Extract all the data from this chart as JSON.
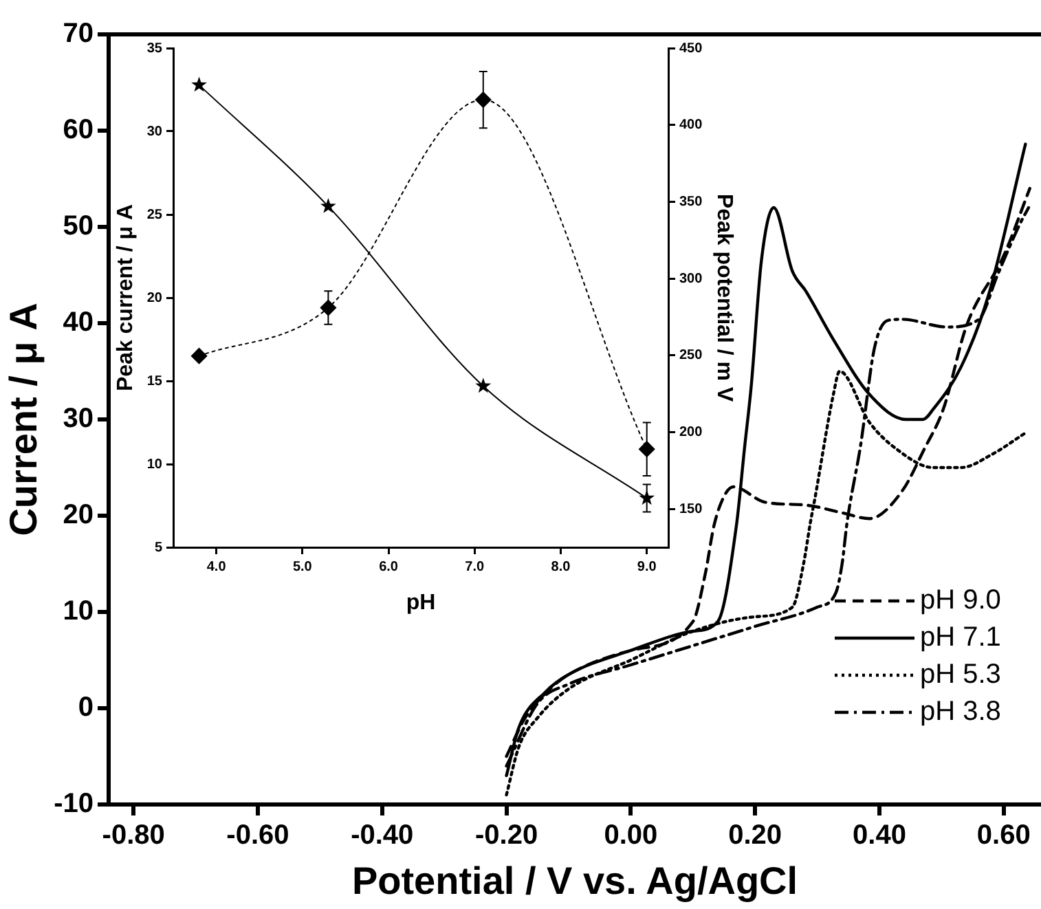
{
  "chart_data": [
    {
      "type": "line",
      "xlabel": "Potential / V vs. Ag/AgCl",
      "ylabel": "Current / μ A",
      "xlim": [
        -0.84,
        0.66
      ],
      "xticks": [
        {
          "value": -0.8,
          "label": "-0.80"
        },
        {
          "value": -0.6,
          "label": "-0.60"
        },
        {
          "value": -0.4,
          "label": "-0.40"
        },
        {
          "value": -0.2,
          "label": "-0.20"
        },
        {
          "value": 0,
          "label": "0.00"
        },
        {
          "value": 0.2,
          "label": "0.20"
        },
        {
          "value": 0.4,
          "label": "0.40"
        },
        {
          "value": 0.6,
          "label": "0.60"
        }
      ],
      "ylim": [
        -10,
        70
      ],
      "yticks": [
        -10,
        0,
        10,
        20,
        30,
        40,
        50,
        60,
        70
      ],
      "grid": false,
      "legend": "bottom right",
      "marker": "none",
      "series": [
        {
          "name": "pH 9.0",
          "color": "#000000",
          "line_style": "dashed",
          "x": [
            -0.2,
            -0.17,
            -0.13,
            -0.1,
            0,
            0.1,
            0.12,
            0.134,
            0.15,
            0.165,
            0.216,
            0.282,
            0.34,
            0.384,
            0.437,
            0.472,
            0.503,
            0.54,
            0.6,
            0.642
          ],
          "values": [
            -5,
            -1,
            2,
            3.5,
            6,
            9,
            14,
            19,
            22,
            23,
            21.4,
            21.1,
            20.3,
            19.7,
            22.6,
            26.9,
            31.1,
            39.7,
            47,
            54
          ]
        },
        {
          "name": "pH 7.1",
          "color": "#000000",
          "line_style": "solid",
          "x": [
            -0.2,
            -0.18,
            -0.137,
            -0.1,
            0,
            0.1,
            0.14,
            0.17,
            0.183,
            0.194,
            0.21,
            0.23,
            0.26,
            0.282,
            0.326,
            0.384,
            0.443,
            0.47,
            0.487,
            0.531,
            0.576,
            0.635
          ],
          "values": [
            -7,
            -2,
            1.7,
            3.5,
            6,
            8,
            9,
            19,
            27,
            33.6,
            46.4,
            52,
            45.4,
            43.3,
            38.3,
            32.6,
            30,
            30,
            31.1,
            35.4,
            43,
            58.6
          ]
        },
        {
          "name": "pH 5.3",
          "color": "#000000",
          "line_style": "dotted",
          "x": [
            -0.2,
            -0.18,
            -0.15,
            -0.1,
            0,
            0.1,
            0.2,
            0.26,
            0.278,
            0.289,
            0.296,
            0.326,
            0.336,
            0.384,
            0.428,
            0.487,
            0.531,
            0.582,
            0.635
          ],
          "values": [
            -9,
            -4,
            -1,
            2,
            5,
            8,
            9.5,
            10.5,
            15,
            19.3,
            21.7,
            32.6,
            35,
            29.7,
            26.9,
            25,
            25,
            26.4,
            28.6
          ]
        },
        {
          "name": "pH 3.8",
          "color": "#000000",
          "line_style": "dashdot",
          "x": [
            -0.2,
            -0.15,
            -0.1,
            0,
            0.1,
            0.2,
            0.3,
            0.33,
            0.34,
            0.348,
            0.37,
            0.392,
            0.414,
            0.437,
            0.509,
            0.56,
            0.59,
            0.626,
            0.64
          ],
          "values": [
            -6,
            0.5,
            2.5,
            4.5,
            6.5,
            8.5,
            10.5,
            12,
            15,
            19.3,
            27.4,
            37.4,
            40.3,
            40.4,
            39.6,
            40.4,
            45,
            50.3,
            52
          ]
        }
      ]
    },
    {
      "type": "line",
      "xlabel": "pH",
      "ylabel": "Peak current / μ A",
      "y2label": "Peak potential / m V",
      "x": [
        3.8,
        5.3,
        7.1,
        9.0
      ],
      "xlim": [
        3.5,
        9.25
      ],
      "xticks": [
        {
          "value": 4,
          "label": "4.0"
        },
        {
          "value": 5,
          "label": "5.0"
        },
        {
          "value": 6,
          "label": "6.0"
        },
        {
          "value": 7,
          "label": "7.0"
        },
        {
          "value": 8,
          "label": "8.0"
        },
        {
          "value": 9,
          "label": "9.0"
        }
      ],
      "ylim": [
        5,
        35
      ],
      "yticks": [
        5,
        10,
        15,
        20,
        25,
        30,
        35
      ],
      "y2lim": [
        125,
        450
      ],
      "y2ticks": [
        150,
        200,
        250,
        300,
        350,
        400,
        450
      ],
      "grid": false,
      "series": [
        {
          "color": "#000000",
          "marker": "diamond",
          "line_style": "dotted",
          "values": [
            16.5,
            19.4,
            31.9,
            10.9
          ],
          "errors": [
            null,
            1.0,
            1.7,
            1.6
          ]
        },
        {
          "color": "#000000",
          "marker": "star",
          "line_style": "solid",
          "axis": "y2",
          "values": [
            426,
            347,
            230,
            157
          ],
          "errors": [
            null,
            null,
            null,
            9
          ]
        }
      ]
    }
  ]
}
